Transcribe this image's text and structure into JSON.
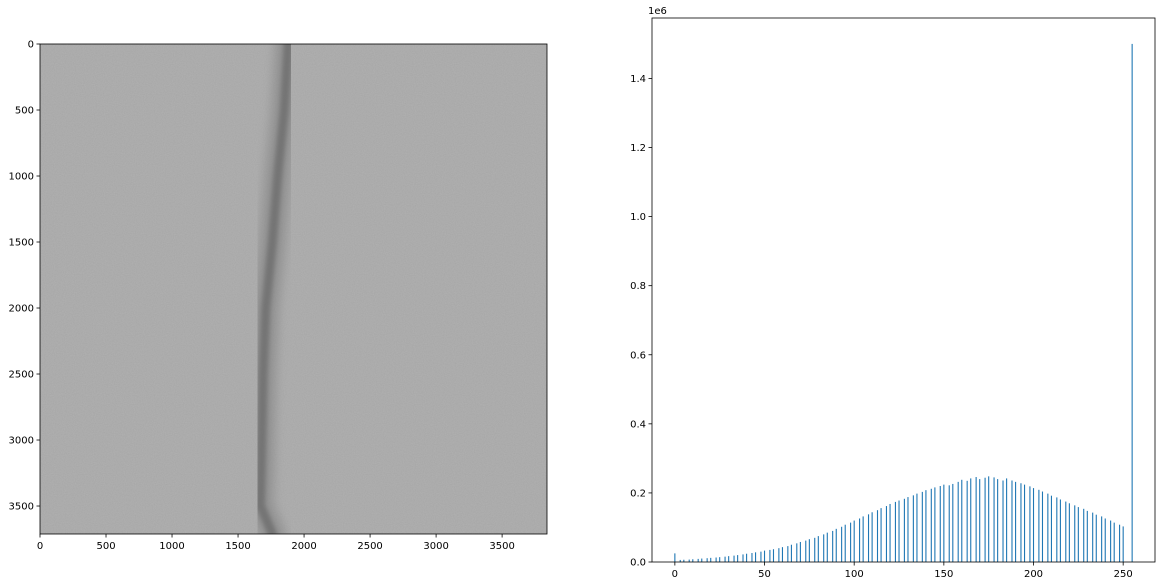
{
  "chart_data": [
    {
      "type": "heatmap",
      "title": "",
      "xlabel": "",
      "ylabel": "",
      "colormap": "gray",
      "xlim": [
        0,
        3840
      ],
      "ylim": [
        3712,
        0
      ],
      "xticks": [
        0,
        500,
        1000,
        1500,
        2000,
        2500,
        3000,
        3500
      ],
      "yticks": [
        0,
        500,
        1000,
        1500,
        2000,
        2500,
        3000,
        3500
      ],
      "dark_streak": {
        "y": [
          0,
          500,
          1000,
          1500,
          2000,
          2500,
          3000,
          3500,
          3712
        ],
        "x": [
          1880,
          1850,
          1800,
          1760,
          1710,
          1690,
          1680,
          1670,
          1760
        ]
      }
    },
    {
      "type": "bar",
      "title": "",
      "xlabel": "",
      "ylabel": "",
      "scale_label": "1e6",
      "bar_color": "#1f77b4",
      "xlim": [
        -12.75,
        267.75
      ],
      "ylim": [
        0,
        1575000
      ],
      "xticks": [
        0,
        50,
        100,
        150,
        200,
        250
      ],
      "yticks": [
        0.0,
        0.2,
        0.4,
        0.6,
        0.8,
        1.0,
        1.2,
        1.4
      ],
      "x": [
        0,
        3,
        5,
        8,
        10,
        13,
        15,
        18,
        20,
        23,
        25,
        28,
        30,
        33,
        35,
        38,
        40,
        43,
        45,
        48,
        50,
        53,
        55,
        58,
        60,
        63,
        65,
        68,
        70,
        73,
        75,
        78,
        80,
        83,
        85,
        88,
        90,
        93,
        95,
        98,
        100,
        103,
        105,
        108,
        110,
        113,
        115,
        118,
        120,
        123,
        125,
        128,
        130,
        133,
        135,
        138,
        140,
        143,
        145,
        148,
        150,
        153,
        155,
        158,
        160,
        163,
        165,
        168,
        170,
        173,
        175,
        178,
        180,
        183,
        185,
        188,
        190,
        193,
        195,
        198,
        200,
        203,
        205,
        208,
        210,
        213,
        215,
        218,
        220,
        223,
        225,
        228,
        230,
        233,
        235,
        238,
        240,
        243,
        245,
        248,
        250,
        255
      ],
      "values": [
        25000,
        6000,
        6500,
        7000,
        8000,
        9000,
        10000,
        11000,
        12000,
        13000,
        14000,
        15500,
        17000,
        18500,
        20000,
        22000,
        24000,
        26000,
        28000,
        30000,
        33000,
        35000,
        37000,
        40000,
        43000,
        46000,
        50000,
        54000,
        58000,
        62000,
        66000,
        70000,
        75000,
        80000,
        85000,
        90000,
        96000,
        102000,
        108000,
        114000,
        120000,
        126000,
        132000,
        138000,
        144000,
        150000,
        156000,
        162000,
        168000,
        174000,
        178000,
        183000,
        188000,
        193000,
        198000,
        203000,
        208000,
        212000,
        216000,
        220000,
        224000,
        222000,
        226000,
        232000,
        238000,
        235000,
        242000,
        246000,
        240000,
        244000,
        248000,
        245000,
        240000,
        236000,
        242000,
        236000,
        232000,
        228000,
        224000,
        219000,
        214000,
        209000,
        204000,
        198000,
        192000,
        187000,
        181000,
        175000,
        170000,
        164000,
        159000,
        154000,
        148000,
        143000,
        137000,
        132000,
        126000,
        120000,
        114000,
        108000,
        103000,
        1500000
      ]
    }
  ]
}
